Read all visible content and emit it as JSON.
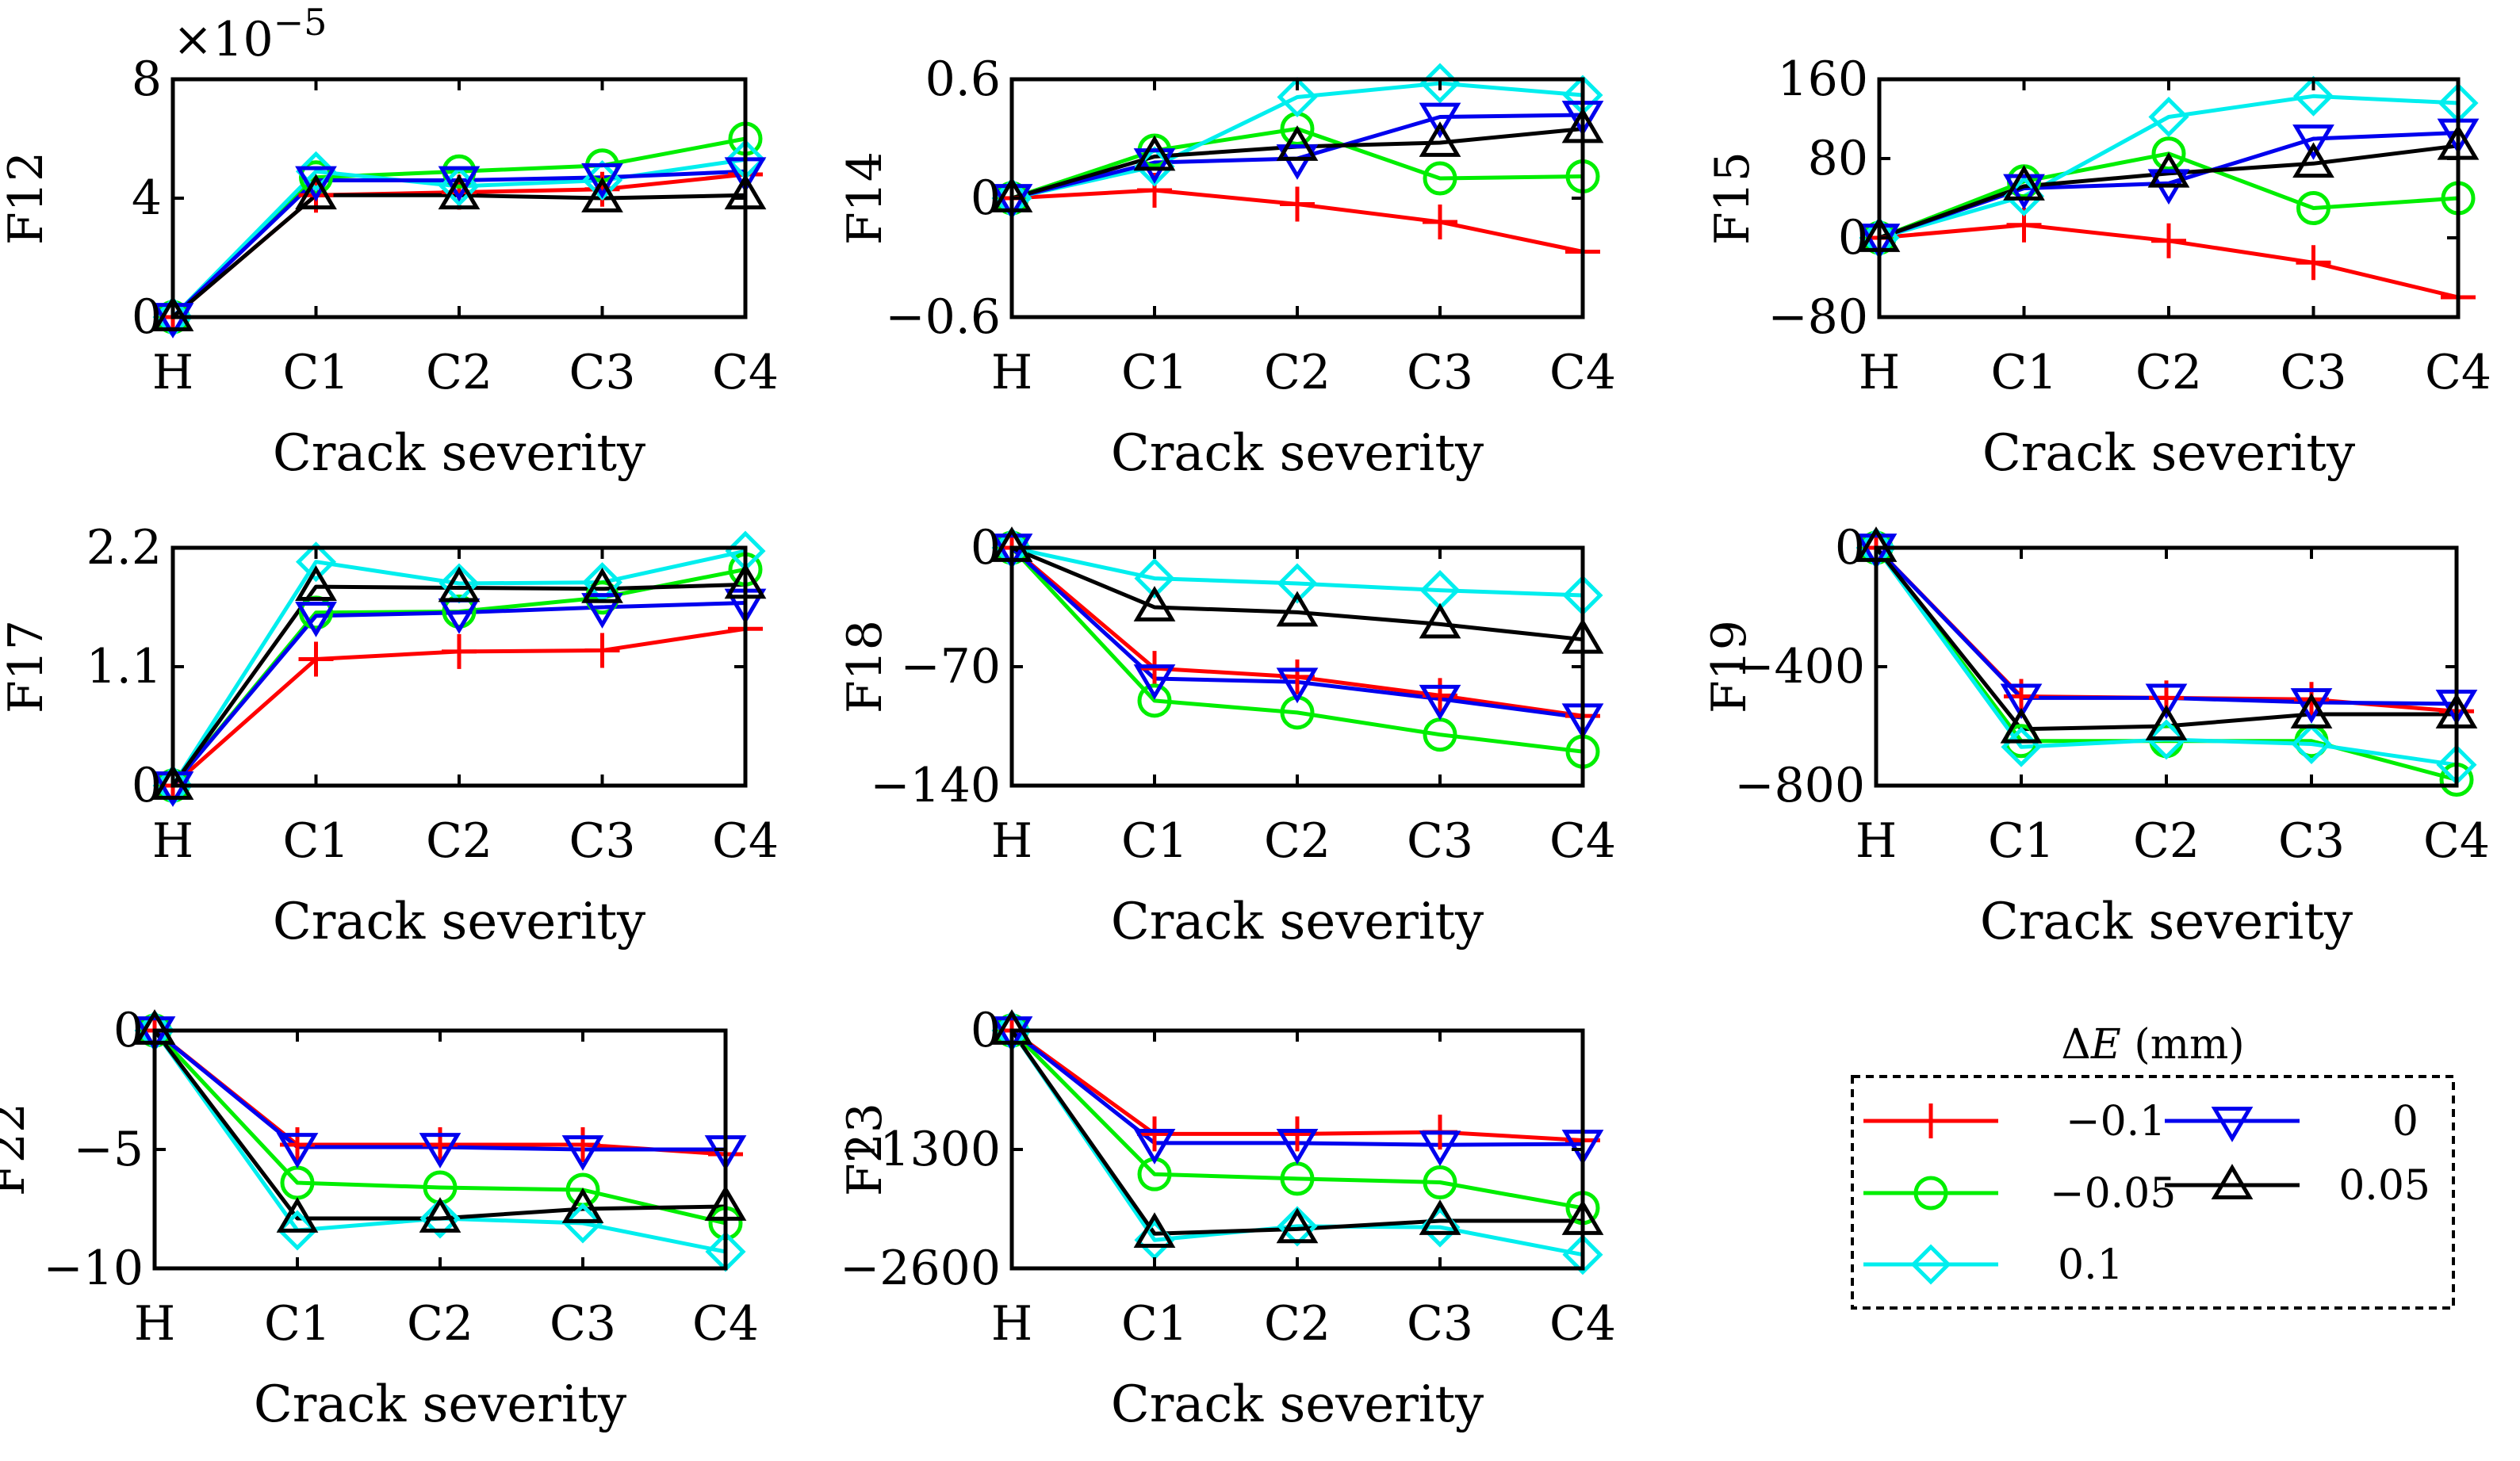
{
  "legend": {
    "title_prefix": "Δ",
    "title_var": "E",
    "title_suffix": " (mm)",
    "entries": [
      {
        "name": "−0.1",
        "series": 0
      },
      {
        "name": "0",
        "series": 3
      },
      {
        "name": "−0.05",
        "series": 1
      },
      {
        "name": "0.05",
        "series": 4
      },
      {
        "name": "0.1",
        "series": 2
      }
    ]
  },
  "series_style": [
    {
      "color": "#ff0000",
      "marker": "plus"
    },
    {
      "color": "#00ee00",
      "marker": "circle"
    },
    {
      "color": "#00eeee",
      "marker": "diamond"
    },
    {
      "color": "#0000ee",
      "marker": "triangle-down"
    },
    {
      "color": "#000000",
      "marker": "triangle-up"
    }
  ],
  "chart_data": [
    {
      "type": "line",
      "ylabel": "F12",
      "xlabel": "Crack severity",
      "categories": [
        "H",
        "C1",
        "C2",
        "C3",
        "C4"
      ],
      "ylim": [
        0,
        8
      ],
      "yticks": [
        0,
        4,
        8
      ],
      "ytick_labels": [
        "0",
        "4",
        "8"
      ],
      "multiplier_base": "×10",
      "multiplier_exp": "−5",
      "series": [
        {
          "name": "−0.1",
          "values": [
            0,
            4.1,
            4.2,
            4.3,
            4.8
          ]
        },
        {
          "name": "−0.05",
          "values": [
            0,
            4.7,
            4.9,
            5.1,
            6.0
          ]
        },
        {
          "name": "0.1",
          "values": [
            0,
            4.9,
            4.4,
            4.6,
            5.3
          ]
        },
        {
          "name": "0",
          "values": [
            0,
            4.6,
            4.6,
            4.7,
            4.9
          ]
        },
        {
          "name": "0.05",
          "values": [
            0,
            4.1,
            4.1,
            4.0,
            4.1
          ]
        }
      ]
    },
    {
      "type": "line",
      "ylabel": "F14",
      "xlabel": "Crack severity",
      "categories": [
        "H",
        "C1",
        "C2",
        "C3",
        "C4"
      ],
      "ylim": [
        -0.6,
        0.6
      ],
      "yticks": [
        -0.6,
        0,
        0.6
      ],
      "ytick_labels": [
        "−0.6",
        "0",
        "0.6"
      ],
      "series": [
        {
          "name": "−0.1",
          "values": [
            0,
            0.04,
            -0.03,
            -0.12,
            -0.27
          ]
        },
        {
          "name": "−0.05",
          "values": [
            0,
            0.24,
            0.35,
            0.1,
            0.11
          ]
        },
        {
          "name": "0.1",
          "values": [
            0,
            0.16,
            0.51,
            0.58,
            0.52
          ]
        },
        {
          "name": "0",
          "values": [
            0,
            0.18,
            0.2,
            0.41,
            0.42
          ]
        },
        {
          "name": "0.05",
          "values": [
            0,
            0.21,
            0.26,
            0.28,
            0.35
          ]
        }
      ]
    },
    {
      "type": "line",
      "ylabel": "F15",
      "xlabel": "Crack severity",
      "categories": [
        "H",
        "C1",
        "C2",
        "C3",
        "C4"
      ],
      "ylim": [
        -80,
        160
      ],
      "yticks": [
        -80,
        0,
        80,
        160
      ],
      "ytick_labels": [
        "−80",
        "0",
        "80",
        "160"
      ],
      "series": [
        {
          "name": "−0.1",
          "values": [
            0,
            13,
            -3,
            -25,
            -60
          ]
        },
        {
          "name": "−0.05",
          "values": [
            0,
            57,
            85,
            30,
            40
          ]
        },
        {
          "name": "0.1",
          "values": [
            0,
            42,
            122,
            143,
            136
          ]
        },
        {
          "name": "0",
          "values": [
            0,
            50,
            55,
            100,
            106
          ]
        },
        {
          "name": "0.05",
          "values": [
            0,
            52,
            65,
            75,
            93
          ]
        }
      ]
    },
    {
      "type": "line",
      "ylabel": "F17",
      "xlabel": "Crack severity",
      "categories": [
        "H",
        "C1",
        "C2",
        "C3",
        "C4"
      ],
      "ylim": [
        0,
        2.2
      ],
      "yticks": [
        0,
        1.1,
        2.2
      ],
      "ytick_labels": [
        "0",
        "1.1",
        "2.2"
      ],
      "series": [
        {
          "name": "−0.1",
          "values": [
            0,
            1.17,
            1.24,
            1.25,
            1.45
          ]
        },
        {
          "name": "−0.05",
          "values": [
            0,
            1.6,
            1.61,
            1.74,
            2.0
          ]
        },
        {
          "name": "0.1",
          "values": [
            0,
            2.07,
            1.87,
            1.88,
            2.17
          ]
        },
        {
          "name": "0",
          "values": [
            0,
            1.57,
            1.6,
            1.65,
            1.69
          ]
        },
        {
          "name": "0.05",
          "values": [
            0,
            1.84,
            1.83,
            1.82,
            1.86
          ]
        }
      ]
    },
    {
      "type": "line",
      "ylabel": "F18",
      "xlabel": "Crack severity",
      "categories": [
        "H",
        "C1",
        "C2",
        "C3",
        "C4"
      ],
      "ylim": [
        -140,
        0
      ],
      "yticks": [
        -140,
        -70,
        0
      ],
      "ytick_labels": [
        "−140",
        "−70",
        "0"
      ],
      "series": [
        {
          "name": "−0.1",
          "values": [
            0,
            -71,
            -76,
            -87,
            -99
          ]
        },
        {
          "name": "−0.05",
          "values": [
            0,
            -90,
            -97,
            -110,
            -120
          ]
        },
        {
          "name": "0.1",
          "values": [
            0,
            -18,
            -21,
            -25,
            -28
          ]
        },
        {
          "name": "0",
          "values": [
            0,
            -77,
            -79,
            -89,
            -100
          ]
        },
        {
          "name": "0.05",
          "values": [
            0,
            -35,
            -38,
            -45,
            -54
          ]
        }
      ]
    },
    {
      "type": "line",
      "ylabel": "F19",
      "xlabel": "Crack severity",
      "categories": [
        "H",
        "C1",
        "C2",
        "C3",
        "C4"
      ],
      "ylim": [
        -800,
        0
      ],
      "yticks": [
        -800,
        -400,
        0
      ],
      "ytick_labels": [
        "−800",
        "−400",
        "0"
      ],
      "series": [
        {
          "name": "−0.1",
          "values": [
            0,
            -500,
            -505,
            -510,
            -550
          ]
        },
        {
          "name": "−0.05",
          "values": [
            0,
            -650,
            -650,
            -650,
            -780
          ]
        },
        {
          "name": "0.1",
          "values": [
            0,
            -670,
            -645,
            -660,
            -730
          ]
        },
        {
          "name": "0",
          "values": [
            0,
            -505,
            -505,
            -520,
            -525
          ]
        },
        {
          "name": "0.05",
          "values": [
            0,
            -610,
            -600,
            -560,
            -560
          ]
        }
      ]
    },
    {
      "type": "line",
      "ylabel": "F22",
      "xlabel": "Crack severity",
      "categories": [
        "H",
        "C1",
        "C2",
        "C3",
        "C4"
      ],
      "ylim": [
        -10,
        0
      ],
      "yticks": [
        -10,
        -5,
        0
      ],
      "ytick_labels": [
        "−10",
        "−5",
        "0"
      ],
      "series": [
        {
          "name": "−0.1",
          "values": [
            0,
            -4.8,
            -4.8,
            -4.8,
            -5.2
          ]
        },
        {
          "name": "−0.05",
          "values": [
            0,
            -6.4,
            -6.6,
            -6.7,
            -8.1
          ]
        },
        {
          "name": "0.1",
          "values": [
            0,
            -8.4,
            -7.9,
            -8.1,
            -9.3
          ]
        },
        {
          "name": "0",
          "values": [
            0,
            -4.9,
            -4.9,
            -5.0,
            -5.0
          ]
        },
        {
          "name": "0.05",
          "values": [
            0,
            -7.9,
            -7.9,
            -7.5,
            -7.4
          ]
        }
      ]
    },
    {
      "type": "line",
      "ylabel": "F23",
      "xlabel": "Crack severity",
      "categories": [
        "H",
        "C1",
        "C2",
        "C3",
        "C4"
      ],
      "ylim": [
        -2600,
        0
      ],
      "yticks": [
        -2600,
        -1300,
        0
      ],
      "ytick_labels": [
        "−2600",
        "−1300",
        "0"
      ],
      "series": [
        {
          "name": "−0.1",
          "values": [
            0,
            -1130,
            -1130,
            -1110,
            -1200
          ]
        },
        {
          "name": "−0.05",
          "values": [
            0,
            -1570,
            -1620,
            -1660,
            -1940
          ]
        },
        {
          "name": "0.1",
          "values": [
            0,
            -2290,
            -2140,
            -2150,
            -2450
          ]
        },
        {
          "name": "0",
          "values": [
            0,
            -1230,
            -1230,
            -1250,
            -1240
          ]
        },
        {
          "name": "0.05",
          "values": [
            0,
            -2220,
            -2170,
            -2080,
            -2080
          ]
        }
      ]
    }
  ]
}
